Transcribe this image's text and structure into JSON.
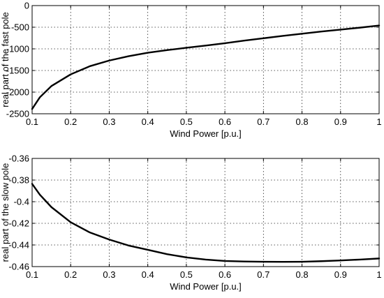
{
  "chart_data": [
    {
      "type": "line",
      "xlabel": "Wind Power [p.u.]",
      "ylabel": "real part of the fast pole",
      "xlim": [
        0.1,
        1
      ],
      "ylim": [
        -2500,
        0
      ],
      "xticks": [
        0.1,
        0.2,
        0.3,
        0.4,
        0.5,
        0.6,
        0.7,
        0.8,
        0.9,
        1
      ],
      "xtick_labels": [
        "0.1",
        "0.2",
        "0.3",
        "0.4",
        "0.5",
        "0.6",
        "0.7",
        "0.8",
        "0.9",
        "1"
      ],
      "yticks": [
        0,
        -500,
        -1000,
        -1500,
        -2000,
        -2500
      ],
      "ytick_labels": [
        "0",
        "-500",
        "-1000",
        "-1500",
        "-2000",
        "-2500"
      ],
      "grid": true,
      "series": [
        {
          "x": [
            0.1,
            0.12,
            0.15,
            0.2,
            0.25,
            0.3,
            0.35,
            0.4,
            0.45,
            0.5,
            0.55,
            0.6,
            0.65,
            0.7,
            0.75,
            0.8,
            0.85,
            0.9,
            0.95,
            1.0
          ],
          "values": [
            -2390,
            -2120,
            -1860,
            -1590,
            -1400,
            -1270,
            -1170,
            -1090,
            -1030,
            -975,
            -925,
            -870,
            -810,
            -755,
            -700,
            -650,
            -600,
            -555,
            -510,
            -460
          ]
        }
      ]
    },
    {
      "type": "line",
      "xlabel": "Wind Power [p.u.]",
      "ylabel": "real part of the slow pole",
      "xlim": [
        0.1,
        1
      ],
      "ylim": [
        -0.46,
        -0.36
      ],
      "xticks": [
        0.1,
        0.2,
        0.3,
        0.4,
        0.5,
        0.6,
        0.7,
        0.8,
        0.9,
        1
      ],
      "xtick_labels": [
        "0.1",
        "0.2",
        "0.3",
        "0.4",
        "0.5",
        "0.6",
        "0.7",
        "0.8",
        "0.9",
        "1"
      ],
      "yticks": [
        -0.36,
        -0.38,
        -0.4,
        -0.42,
        -0.44,
        -0.46
      ],
      "ytick_labels": [
        "-0.36",
        "-0.38",
        "-0.4",
        "-0.42",
        "-0.44",
        "-0.46"
      ],
      "grid": true,
      "series": [
        {
          "x": [
            0.1,
            0.12,
            0.15,
            0.2,
            0.25,
            0.3,
            0.35,
            0.4,
            0.45,
            0.5,
            0.55,
            0.6,
            0.65,
            0.7,
            0.75,
            0.8,
            0.85,
            0.9,
            0.95,
            1.0
          ],
          "values": [
            -0.3835,
            -0.3935,
            -0.405,
            -0.419,
            -0.4285,
            -0.435,
            -0.4405,
            -0.4445,
            -0.4485,
            -0.4515,
            -0.4535,
            -0.4548,
            -0.4553,
            -0.4555,
            -0.4556,
            -0.4555,
            -0.455,
            -0.4543,
            -0.4535,
            -0.4525
          ]
        }
      ]
    }
  ]
}
